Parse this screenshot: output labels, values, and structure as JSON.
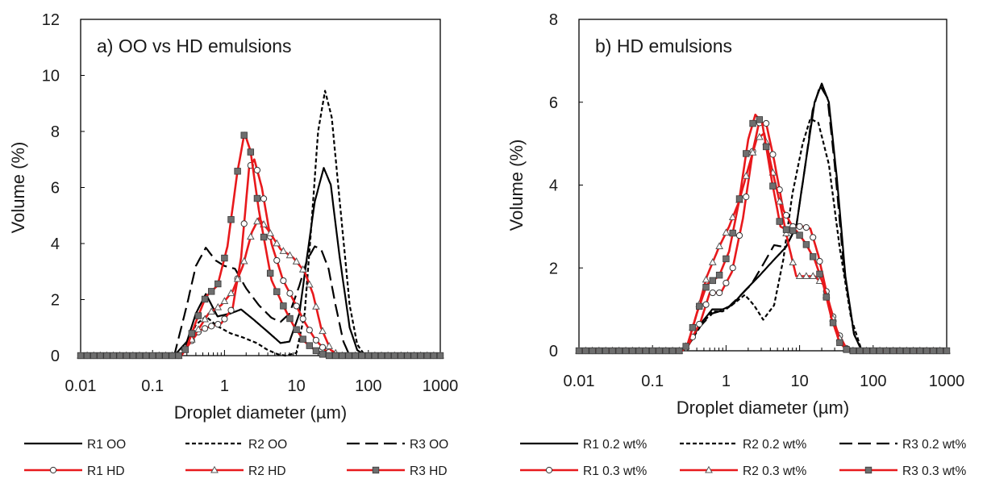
{
  "chart_data": [
    {
      "type": "line",
      "title": "a) OO vs HD emulsions",
      "xlabel": "Droplet diameter (µm)",
      "ylabel": "Volume (%)",
      "xscale": "log",
      "xlim": [
        0.01,
        1000
      ],
      "ylim": [
        0,
        12
      ],
      "xticks": [
        "0.01",
        "0.1",
        "1",
        "10",
        "100",
        "1000"
      ],
      "yticks": [
        "0",
        "2",
        "4",
        "6",
        "8",
        "10",
        "12"
      ],
      "grid": false,
      "legend_position": "bottom",
      "series": [
        {
          "name": "R1 OO",
          "color": "#000000",
          "style": "solid",
          "marker": "none",
          "points": [
            [
              0.01,
              0
            ],
            [
              0.2,
              0
            ],
            [
              0.3,
              0.5
            ],
            [
              0.4,
              1.5
            ],
            [
              0.55,
              2.2
            ],
            [
              0.8,
              1.4
            ],
            [
              1.2,
              1.5
            ],
            [
              1.7,
              1.65
            ],
            [
              2.5,
              1.3
            ],
            [
              4,
              0.85
            ],
            [
              6,
              0.45
            ],
            [
              8,
              0.5
            ],
            [
              11,
              1.5
            ],
            [
              14,
              3.5
            ],
            [
              18,
              5.5
            ],
            [
              24,
              6.7
            ],
            [
              30,
              6.1
            ],
            [
              40,
              3.5
            ],
            [
              55,
              1.0
            ],
            [
              70,
              0.2
            ],
            [
              90,
              0
            ],
            [
              1000,
              0
            ]
          ]
        },
        {
          "name": "R2 OO",
          "color": "#000000",
          "style": "dashed-short",
          "marker": "none",
          "points": [
            [
              0.01,
              0
            ],
            [
              0.22,
              0
            ],
            [
              0.3,
              0.4
            ],
            [
              0.4,
              1.1
            ],
            [
              0.55,
              1.4
            ],
            [
              0.8,
              1.05
            ],
            [
              1.2,
              0.8
            ],
            [
              1.8,
              0.65
            ],
            [
              2.8,
              0.45
            ],
            [
              4,
              0.2
            ],
            [
              5.5,
              0.05
            ],
            [
              7,
              0
            ],
            [
              10,
              0.1
            ],
            [
              13,
              1.5
            ],
            [
              16,
              4.5
            ],
            [
              20,
              8
            ],
            [
              25,
              9.45
            ],
            [
              31,
              8.5
            ],
            [
              40,
              5.5
            ],
            [
              55,
              1.8
            ],
            [
              70,
              0.4
            ],
            [
              90,
              0
            ],
            [
              1000,
              0
            ]
          ]
        },
        {
          "name": "R3 OO",
          "color": "#000000",
          "style": "dashed-long",
          "marker": "none",
          "points": [
            [
              0.01,
              0
            ],
            [
              0.2,
              0
            ],
            [
              0.3,
              1.8
            ],
            [
              0.4,
              3.2
            ],
            [
              0.55,
              3.85
            ],
            [
              0.75,
              3.4
            ],
            [
              1.0,
              3.2
            ],
            [
              1.4,
              3.1
            ],
            [
              2.0,
              2.4
            ],
            [
              3,
              1.8
            ],
            [
              4.5,
              1.35
            ],
            [
              6,
              1.2
            ],
            [
              8,
              1.5
            ],
            [
              11,
              2.5
            ],
            [
              14,
              3.4
            ],
            [
              18,
              3.9
            ],
            [
              22,
              3.8
            ],
            [
              28,
              3.1
            ],
            [
              35,
              1.8
            ],
            [
              45,
              0.5
            ],
            [
              55,
              0
            ],
            [
              1000,
              0
            ]
          ]
        },
        {
          "name": "R1 HD",
          "color": "#e8191c",
          "style": "solid",
          "marker": "circle",
          "points": [
            [
              0.01,
              0
            ],
            [
              0.25,
              0
            ],
            [
              0.3,
              0.3
            ],
            [
              0.45,
              0.9
            ],
            [
              0.65,
              1.05
            ],
            [
              0.9,
              1.15
            ],
            [
              1.3,
              1.7
            ],
            [
              1.7,
              3.5
            ],
            [
              2.2,
              6.7
            ],
            [
              2.6,
              7.0
            ],
            [
              3.3,
              6.0
            ],
            [
              4.5,
              4.0
            ],
            [
              6.5,
              2.7
            ],
            [
              9,
              2.0
            ],
            [
              13,
              1.2
            ],
            [
              18,
              0.6
            ],
            [
              25,
              0.2
            ],
            [
              35,
              0
            ],
            [
              1000,
              0
            ]
          ]
        },
        {
          "name": "R2 HD",
          "color": "#e8191c",
          "style": "solid",
          "marker": "triangle",
          "points": [
            [
              0.01,
              0
            ],
            [
              0.25,
              0
            ],
            [
              0.3,
              0.3
            ],
            [
              0.45,
              1.0
            ],
            [
              0.6,
              1.5
            ],
            [
              0.9,
              1.8
            ],
            [
              1.3,
              2.3
            ],
            [
              1.8,
              3.2
            ],
            [
              2.4,
              4.4
            ],
            [
              3.0,
              4.9
            ],
            [
              4.0,
              4.5
            ],
            [
              6,
              3.8
            ],
            [
              9,
              3.5
            ],
            [
              13,
              3.0
            ],
            [
              17,
              2.2
            ],
            [
              22,
              1.0
            ],
            [
              30,
              0.2
            ],
            [
              40,
              0
            ],
            [
              1000,
              0
            ]
          ]
        },
        {
          "name": "R3 HD",
          "color": "#e8191c",
          "style": "solid",
          "marker": "square",
          "points": [
            [
              0.01,
              0
            ],
            [
              0.25,
              0
            ],
            [
              0.3,
              0.3
            ],
            [
              0.4,
              1.2
            ],
            [
              0.55,
              2.1
            ],
            [
              0.8,
              2.5
            ],
            [
              1.1,
              3.9
            ],
            [
              1.5,
              6.5
            ],
            [
              1.9,
              7.95
            ],
            [
              2.3,
              7.3
            ],
            [
              3.0,
              5.2
            ],
            [
              4.5,
              2.7
            ],
            [
              6.5,
              1.8
            ],
            [
              9,
              1.1
            ],
            [
              13,
              0.5
            ],
            [
              18,
              0.2
            ],
            [
              25,
              0
            ],
            [
              1000,
              0
            ]
          ]
        }
      ]
    },
    {
      "type": "line",
      "title": "b) HD emulsions",
      "xlabel": "Droplet diameter (µm)",
      "ylabel": "Volume (%)",
      "xscale": "log",
      "xlim": [
        0.01,
        1000
      ],
      "ylim": [
        0,
        8
      ],
      "xticks": [
        "0.01",
        "0.1",
        "1",
        "10",
        "100",
        "1000"
      ],
      "yticks": [
        "0",
        "2",
        "4",
        "6",
        "8"
      ],
      "grid": false,
      "legend_position": "bottom",
      "series": [
        {
          "name": "R1 0.2 wt%",
          "color": "#000000",
          "style": "solid",
          "marker": "none",
          "points": [
            [
              0.01,
              0
            ],
            [
              0.25,
              0
            ],
            [
              0.3,
              0.1
            ],
            [
              0.45,
              0.65
            ],
            [
              0.65,
              1.0
            ],
            [
              0.9,
              1.0
            ],
            [
              1.2,
              1.1
            ],
            [
              1.8,
              1.45
            ],
            [
              2.8,
              1.8
            ],
            [
              4.5,
              2.2
            ],
            [
              6.5,
              2.5
            ],
            [
              9,
              3.0
            ],
            [
              12,
              4.5
            ],
            [
              16,
              6.0
            ],
            [
              20,
              6.45
            ],
            [
              25,
              6.0
            ],
            [
              32,
              4.2
            ],
            [
              42,
              1.8
            ],
            [
              55,
              0.4
            ],
            [
              70,
              0
            ],
            [
              1000,
              0
            ]
          ]
        },
        {
          "name": "R2 0.2 wt%",
          "color": "#000000",
          "style": "dashed-short",
          "marker": "none",
          "points": [
            [
              0.01,
              0
            ],
            [
              0.25,
              0
            ],
            [
              0.3,
              0.1
            ],
            [
              0.45,
              0.6
            ],
            [
              0.65,
              0.95
            ],
            [
              0.9,
              0.95
            ],
            [
              1.3,
              1.15
            ],
            [
              1.8,
              1.35
            ],
            [
              2.4,
              1.1
            ],
            [
              3.2,
              0.75
            ],
            [
              4.5,
              1.1
            ],
            [
              6,
              2.2
            ],
            [
              8,
              3.8
            ],
            [
              11,
              5.0
            ],
            [
              14,
              5.6
            ],
            [
              18,
              5.5
            ],
            [
              25,
              4.5
            ],
            [
              35,
              2.5
            ],
            [
              50,
              0.8
            ],
            [
              70,
              0
            ],
            [
              1000,
              0
            ]
          ]
        },
        {
          "name": "R3 0.2 wt%",
          "color": "#000000",
          "style": "dashed-long",
          "marker": "none",
          "points": [
            [
              0.01,
              0
            ],
            [
              0.25,
              0
            ],
            [
              0.3,
              0.1
            ],
            [
              0.45,
              0.6
            ],
            [
              0.65,
              0.9
            ],
            [
              1.0,
              1.0
            ],
            [
              1.5,
              1.3
            ],
            [
              2.2,
              1.6
            ],
            [
              3,
              2.0
            ],
            [
              4.5,
              2.55
            ],
            [
              6.5,
              2.5
            ],
            [
              9,
              3.0
            ],
            [
              12,
              4.5
            ],
            [
              15,
              5.8
            ],
            [
              19,
              6.4
            ],
            [
              24,
              6.1
            ],
            [
              30,
              4.5
            ],
            [
              40,
              2.0
            ],
            [
              55,
              0.4
            ],
            [
              70,
              0
            ],
            [
              1000,
              0
            ]
          ]
        },
        {
          "name": "R1 0.3 wt%",
          "color": "#e8191c",
          "style": "solid",
          "marker": "circle",
          "points": [
            [
              0.01,
              0
            ],
            [
              0.25,
              0
            ],
            [
              0.3,
              0.1
            ],
            [
              0.45,
              0.7
            ],
            [
              0.6,
              1.4
            ],
            [
              0.85,
              1.4
            ],
            [
              1.2,
              1.9
            ],
            [
              1.7,
              3.2
            ],
            [
              2.3,
              4.8
            ],
            [
              2.8,
              5.5
            ],
            [
              3.5,
              5.5
            ],
            [
              4.5,
              4.6
            ],
            [
              6,
              3.4
            ],
            [
              8,
              3.0
            ],
            [
              11,
              3.0
            ],
            [
              14,
              2.95
            ],
            [
              18,
              2.3
            ],
            [
              24,
              1.3
            ],
            [
              32,
              0.5
            ],
            [
              45,
              0
            ],
            [
              1000,
              0
            ]
          ]
        },
        {
          "name": "R2 0.3 wt%",
          "color": "#e8191c",
          "style": "solid",
          "marker": "triangle",
          "points": [
            [
              0.01,
              0
            ],
            [
              0.25,
              0
            ],
            [
              0.3,
              0.15
            ],
            [
              0.4,
              0.9
            ],
            [
              0.55,
              1.8
            ],
            [
              0.8,
              2.5
            ],
            [
              1.1,
              3.0
            ],
            [
              1.5,
              3.6
            ],
            [
              2.0,
              4.4
            ],
            [
              2.6,
              5.1
            ],
            [
              3.3,
              5.25
            ],
            [
              4.2,
              4.4
            ],
            [
              5.5,
              3.5
            ],
            [
              7,
              2.6
            ],
            [
              9,
              1.8
            ],
            [
              12,
              1.8
            ],
            [
              16,
              1.8
            ],
            [
              21,
              1.6
            ],
            [
              27,
              0.9
            ],
            [
              35,
              0.3
            ],
            [
              45,
              0
            ],
            [
              1000,
              0
            ]
          ]
        },
        {
          "name": "R3 0.3 wt%",
          "color": "#e8191c",
          "style": "solid",
          "marker": "square",
          "points": [
            [
              0.01,
              0
            ],
            [
              0.25,
              0
            ],
            [
              0.3,
              0.15
            ],
            [
              0.4,
              0.9
            ],
            [
              0.55,
              1.6
            ],
            [
              0.8,
              1.8
            ],
            [
              1.1,
              2.4
            ],
            [
              1.5,
              3.6
            ],
            [
              2.0,
              5.1
            ],
            [
              2.5,
              5.7
            ],
            [
              3.1,
              5.5
            ],
            [
              4.2,
              4.1
            ],
            [
              5.5,
              3.0
            ],
            [
              7,
              2.9
            ],
            [
              9,
              2.9
            ],
            [
              12,
              2.6
            ],
            [
              16,
              2.2
            ],
            [
              21,
              1.6
            ],
            [
              27,
              0.8
            ],
            [
              35,
              0.2
            ],
            [
              45,
              0
            ],
            [
              1000,
              0
            ]
          ]
        }
      ]
    }
  ]
}
